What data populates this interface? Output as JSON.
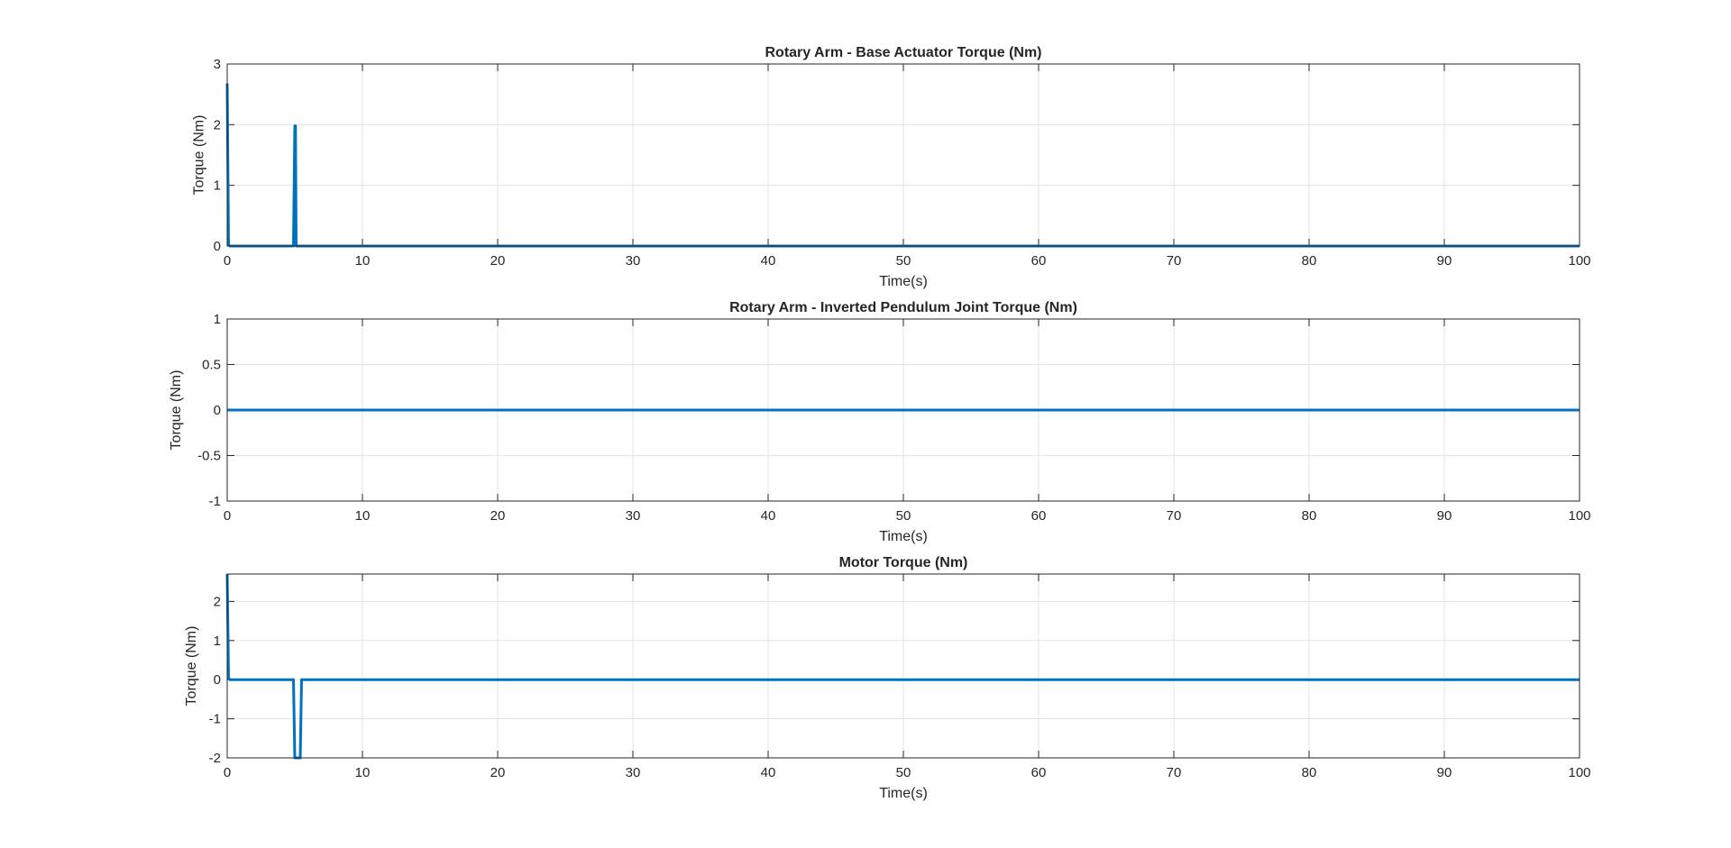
{
  "figure": {
    "background": "#ffffff",
    "line_color": "#0072BD",
    "grid_color": "#e3e3e3",
    "axis_color": "#262626"
  },
  "chart_data": [
    {
      "type": "line",
      "title": "Rotary Arm - Base Actuator Torque (Nm)",
      "xlabel": "Time(s)",
      "ylabel": "Torque (Nm)",
      "xlim": [
        0,
        100
      ],
      "ylim": [
        0,
        3
      ],
      "xticks": [
        0,
        10,
        20,
        30,
        40,
        50,
        60,
        70,
        80,
        90,
        100
      ],
      "yticks": [
        0,
        1,
        2,
        3
      ],
      "grid": true,
      "series": [
        {
          "x": [
            0,
            0.0,
            0.1,
            0.2,
            4.9,
            5.0,
            5.05,
            5.1,
            100
          ],
          "y": [
            2.68,
            2.68,
            0.02,
            0,
            0,
            1.98,
            1.98,
            0,
            0
          ]
        }
      ]
    },
    {
      "type": "line",
      "title": "Rotary Arm - Inverted Pendulum Joint Torque (Nm)",
      "xlabel": "Time(s)",
      "ylabel": "Torque (Nm)",
      "xlim": [
        0,
        100
      ],
      "ylim": [
        -1,
        1
      ],
      "xticks": [
        0,
        10,
        20,
        30,
        40,
        50,
        60,
        70,
        80,
        90,
        100
      ],
      "yticks": [
        -1,
        -0.5,
        0,
        0.5,
        1
      ],
      "grid": true,
      "series": [
        {
          "x": [
            0,
            100
          ],
          "y": [
            0,
            0
          ]
        }
      ]
    },
    {
      "type": "line",
      "title": "Motor Torque (Nm)",
      "xlabel": "Time(s)",
      "ylabel": "Torque (Nm)",
      "xlim": [
        0,
        100
      ],
      "ylim": [
        -2,
        2.7
      ],
      "xticks": [
        0,
        10,
        20,
        30,
        40,
        50,
        60,
        70,
        80,
        90,
        100
      ],
      "yticks": [
        -2,
        -1,
        0,
        1,
        2
      ],
      "grid": true,
      "series": [
        {
          "x": [
            0,
            0.0,
            0.1,
            0.2,
            4.9,
            5.0,
            5.4,
            5.5,
            100
          ],
          "y": [
            2.7,
            2.7,
            0.05,
            0,
            0,
            -2,
            -2,
            0,
            0
          ]
        }
      ]
    }
  ]
}
